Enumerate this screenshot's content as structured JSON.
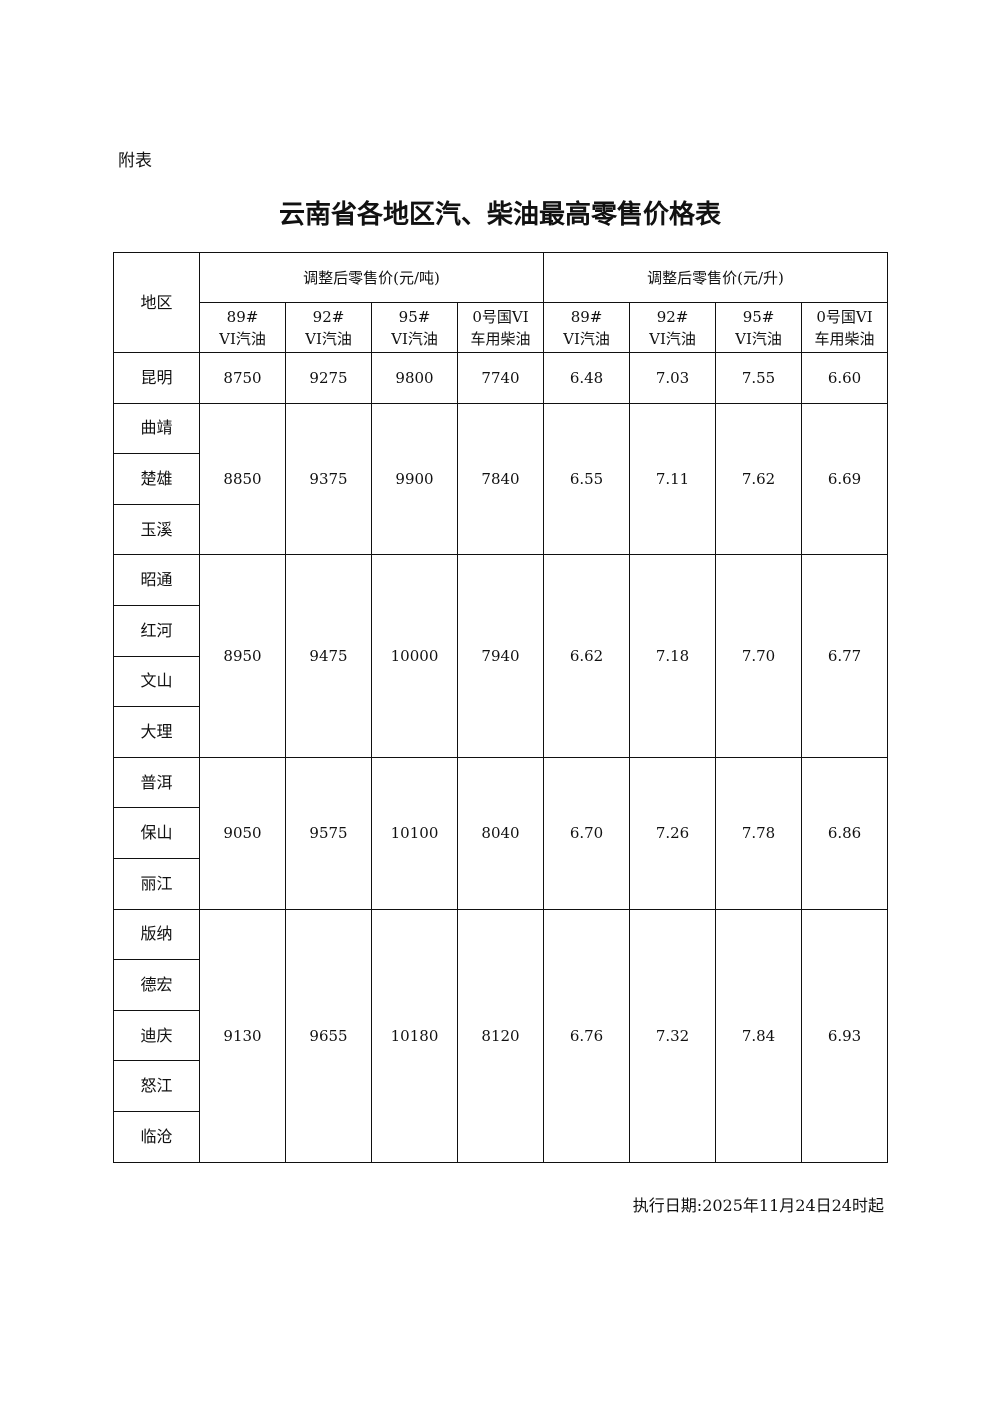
{
  "annex_label": "附表",
  "title": "云南省各地区汽、柴油最高零售价格表",
  "table": {
    "region_header": "地区",
    "group_headers": [
      "调整后零售价(元/吨)",
      "调整后零售价(元/升)"
    ],
    "fuel_headers": [
      [
        "89#",
        "VI汽油"
      ],
      [
        "92#",
        "VI汽油"
      ],
      [
        "95#",
        "VI汽油"
      ],
      [
        "0号国VI",
        "车用柴油"
      ],
      [
        "89#",
        "VI汽油"
      ],
      [
        "92#",
        "VI汽油"
      ],
      [
        "95#",
        "VI汽油"
      ],
      [
        "0号国VI",
        "车用柴油"
      ]
    ],
    "groups": [
      {
        "regions": [
          "昆明"
        ],
        "prices": [
          "8750",
          "9275",
          "9800",
          "7740",
          "6.48",
          "7.03",
          "7.55",
          "6.60"
        ]
      },
      {
        "regions": [
          "曲靖",
          "楚雄",
          "玉溪"
        ],
        "prices": [
          "8850",
          "9375",
          "9900",
          "7840",
          "6.55",
          "7.11",
          "7.62",
          "6.69"
        ]
      },
      {
        "regions": [
          "昭通",
          "红河",
          "文山",
          "大理"
        ],
        "prices": [
          "8950",
          "9475",
          "10000",
          "7940",
          "6.62",
          "7.18",
          "7.70",
          "6.77"
        ]
      },
      {
        "regions": [
          "普洱",
          "保山",
          "丽江"
        ],
        "prices": [
          "9050",
          "9575",
          "10100",
          "8040",
          "6.70",
          "7.26",
          "7.78",
          "6.86"
        ]
      },
      {
        "regions": [
          "版纳",
          "德宏",
          "迪庆",
          "怒江",
          "临沧"
        ],
        "prices": [
          "9130",
          "9655",
          "10180",
          "8120",
          "6.76",
          "7.32",
          "7.84",
          "6.93"
        ]
      }
    ]
  },
  "footer": "执行日期:2025年11月24日24时起"
}
